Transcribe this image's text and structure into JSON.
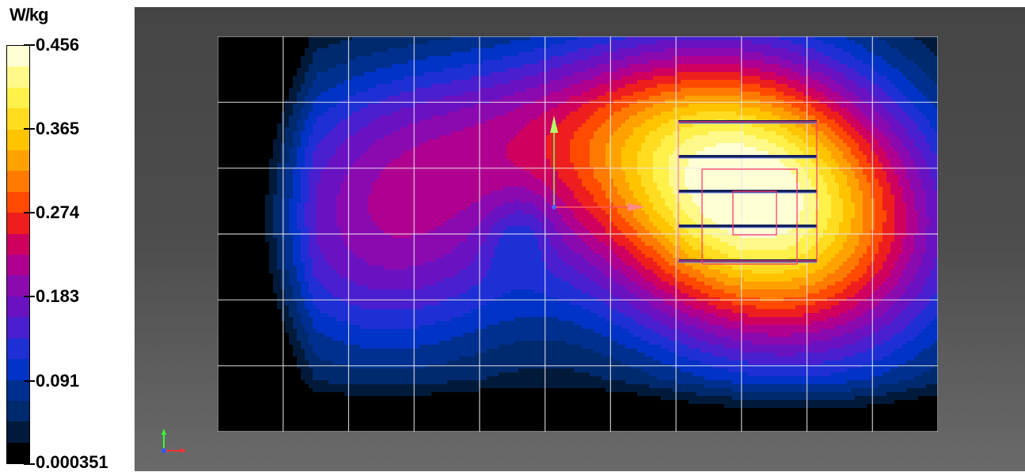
{
  "chart_data": {
    "type": "heatmap",
    "colorbar": {
      "unit": "W/kg",
      "tick_labels": [
        "0.456",
        "0.365",
        "0.274",
        "0.183",
        "0.091",
        "0.000351"
      ],
      "tick_values": [
        0.456,
        0.365,
        0.274,
        0.183,
        0.091,
        0.000351
      ],
      "range": [
        0.000351,
        0.456
      ],
      "levels": [
        "#000000",
        "#021a3a",
        "#002a6e",
        "#00308f",
        "#0033c6",
        "#1f2fd6",
        "#4a1fcf",
        "#6a12c2",
        "#8b0ab0",
        "#b00090",
        "#d0005e",
        "#ee1e1e",
        "#ff4a00",
        "#ff7a00",
        "#ffa200",
        "#ffc300",
        "#ffdc20",
        "#fff04a",
        "#fff98a",
        "#ffffd6"
      ]
    },
    "grid": {
      "cols": 11,
      "rows": 6,
      "visible": true
    },
    "field": {
      "description_levels": "normalized 0-1 of colorbar range",
      "peak": {
        "col": 8.2,
        "row": 2.5,
        "value": 0.456
      },
      "secondary_peak": {
        "col": 2.6,
        "row": 2.9,
        "value": 0.19
      }
    }
  }
}
